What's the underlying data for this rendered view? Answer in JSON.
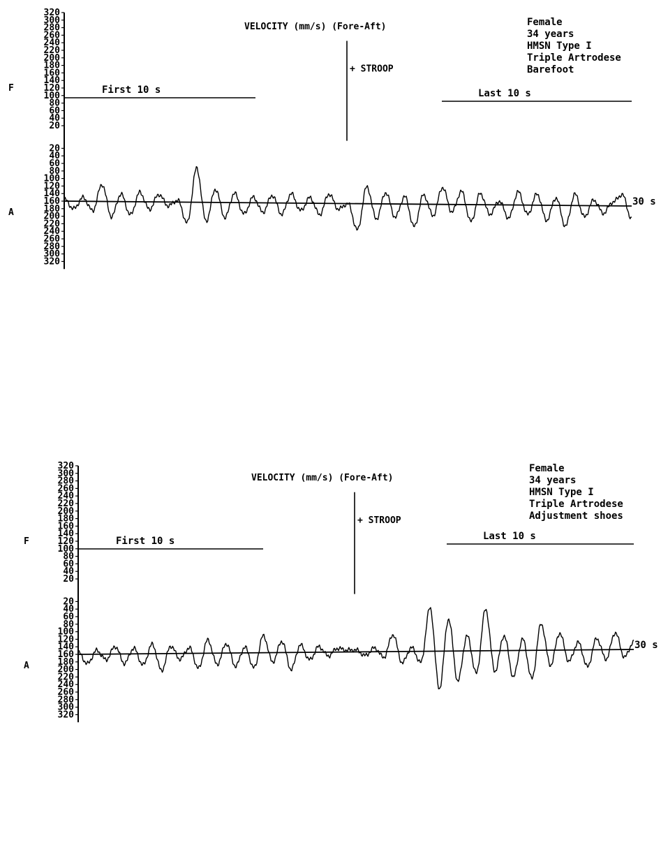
{
  "chart_data": [
    {
      "type": "line",
      "title": "VELOCITY (mm/s) (Fore-Aft)",
      "info_lines": [
        "Female",
        "34 years",
        "HMSN Type I",
        "Triple Artrodese",
        "Barefoot"
      ],
      "y_ticks_top": [
        320,
        300,
        280,
        260,
        240,
        220,
        200,
        180,
        160,
        140,
        120,
        100,
        80,
        60,
        40,
        20
      ],
      "y_ticks_bottom": [
        20,
        40,
        60,
        80,
        100,
        120,
        140,
        160,
        180,
        200,
        220,
        240,
        260,
        280,
        300,
        320
      ],
      "fore_label": "F",
      "aft_label": "A",
      "segment_first": "First 10 s",
      "segment_last": "Last 10 s",
      "event_label": "+ STROOP",
      "end_label": "30 s",
      "ylim": [
        -320,
        320
      ],
      "xlim": [
        0,
        30
      ],
      "stroop_time": 15,
      "stroop_peak": 255,
      "x": [
        0.0,
        0.5,
        1.0,
        1.5,
        2.0,
        2.5,
        3.0,
        3.5,
        4.0,
        4.5,
        5.0,
        5.5,
        6.0,
        6.5,
        7.0,
        7.5,
        8.0,
        8.5,
        9.0,
        9.5,
        10.0,
        10.5,
        11.0,
        11.5,
        12.0,
        12.5,
        13.0,
        13.5,
        14.0,
        14.5,
        15.0,
        15.5,
        16.0,
        16.5,
        17.0,
        17.5,
        18.0,
        18.5,
        19.0,
        19.5,
        20.0,
        20.5,
        21.0,
        21.5,
        22.0,
        22.5,
        23.0,
        23.5,
        24.0,
        24.5,
        25.0,
        25.5,
        26.0,
        26.5,
        27.0,
        27.5,
        28.0,
        28.5,
        29.0,
        29.5,
        30.0
      ],
      "values": [
        5,
        -20,
        10,
        -25,
        45,
        -40,
        20,
        -35,
        25,
        -20,
        20,
        -10,
        5,
        -55,
        90,
        -50,
        35,
        -40,
        25,
        -30,
        15,
        -25,
        20,
        -30,
        25,
        -20,
        15,
        -30,
        25,
        -15,
        0,
        -70,
        45,
        -40,
        30,
        -35,
        20,
        -60,
        25,
        -30,
        45,
        -20,
        35,
        -45,
        30,
        -25,
        10,
        -35,
        35,
        -25,
        30,
        -40,
        20,
        -55,
        30,
        -30,
        15,
        -20,
        10,
        30,
        -35
      ]
    },
    {
      "type": "line",
      "title": "VELOCITY (mm/s) (Fore-Aft)",
      "info_lines": [
        "Female",
        "34 years",
        "HMSN Type I",
        "Triple Artrodese",
        "Adjustment shoes"
      ],
      "y_ticks_top": [
        320,
        300,
        280,
        260,
        240,
        220,
        200,
        180,
        160,
        140,
        120,
        100,
        80,
        60,
        40,
        20
      ],
      "y_ticks_bottom": [
        20,
        40,
        60,
        80,
        100,
        120,
        140,
        160,
        180,
        200,
        220,
        240,
        260,
        280,
        300,
        320
      ],
      "fore_label": "F",
      "aft_label": "A",
      "segment_first": "First 10 s",
      "segment_last": "Last 10 s",
      "event_label": "+ STROOP",
      "end_label": "30 s",
      "ylim": [
        -320,
        320
      ],
      "xlim": [
        0,
        30
      ],
      "stroop_time": 15,
      "stroop_peak": 260,
      "x": [
        0.0,
        0.5,
        1.0,
        1.5,
        2.0,
        2.5,
        3.0,
        3.5,
        4.0,
        4.5,
        5.0,
        5.5,
        6.0,
        6.5,
        7.0,
        7.5,
        8.0,
        8.5,
        9.0,
        9.5,
        10.0,
        10.5,
        11.0,
        11.5,
        12.0,
        12.5,
        13.0,
        13.5,
        14.0,
        14.5,
        15.0,
        15.5,
        16.0,
        16.5,
        17.0,
        17.5,
        18.0,
        18.5,
        19.0,
        19.5,
        20.0,
        20.5,
        21.0,
        21.5,
        22.0,
        22.5,
        23.0,
        23.5,
        24.0,
        24.5,
        25.0,
        25.5,
        26.0,
        26.5,
        27.0,
        27.5,
        28.0,
        28.5,
        29.0,
        29.5,
        30.0
      ],
      "values": [
        5,
        -25,
        10,
        -15,
        20,
        -25,
        15,
        -30,
        25,
        -45,
        20,
        -15,
        15,
        -40,
        35,
        -30,
        25,
        -35,
        15,
        -40,
        45,
        -25,
        30,
        -45,
        20,
        -20,
        15,
        -10,
        10,
        5,
        5,
        -10,
        10,
        -15,
        45,
        -30,
        10,
        -30,
        115,
        -100,
        85,
        -80,
        40,
        -60,
        110,
        -55,
        40,
        -70,
        30,
        -75,
        70,
        -40,
        45,
        -30,
        20,
        -45,
        30,
        -25,
        45,
        -20,
        20
      ]
    }
  ]
}
